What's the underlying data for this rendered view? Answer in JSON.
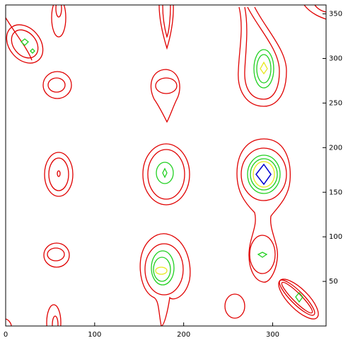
{
  "chart_data": {
    "type": "contour",
    "xlim": [
      0,
      360
    ],
    "ylim": [
      0,
      360
    ],
    "xticks": [
      0,
      100,
      200,
      300
    ],
    "yticks": [
      50,
      100,
      150,
      200,
      250,
      300,
      350
    ]
  }
}
